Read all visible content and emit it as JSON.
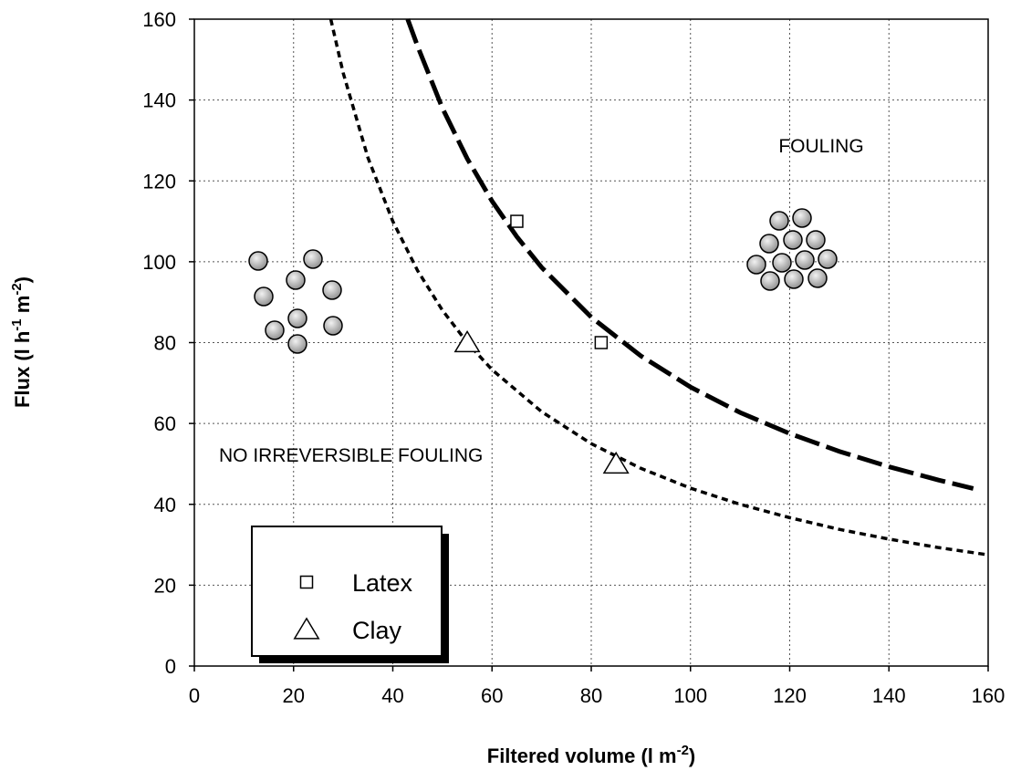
{
  "chart_data": {
    "type": "scatter",
    "x_label": [
      "Filtered volume (l m",
      "-2",
      ")"
    ],
    "y_label": [
      "Flux (l h",
      "-1",
      " m",
      "-2",
      ")"
    ],
    "xlim": [
      0,
      160
    ],
    "ylim": [
      0,
      160
    ],
    "xticks": [
      0,
      20,
      40,
      60,
      80,
      100,
      120,
      140,
      160
    ],
    "yticks": [
      0,
      20,
      40,
      60,
      80,
      100,
      120,
      140,
      160
    ],
    "grid": true,
    "series": [
      {
        "name": "Latex",
        "marker": "square",
        "color": "#000000",
        "x": [
          65,
          82
        ],
        "values": [
          110,
          80
        ]
      },
      {
        "name": "Clay",
        "marker": "triangle",
        "color": "#000000",
        "x": [
          55,
          85
        ],
        "values": [
          80,
          50
        ]
      }
    ],
    "fits": [
      {
        "style": "short-dash",
        "color": "#000000",
        "x": [
          27.5,
          30,
          35,
          40,
          45,
          50,
          55,
          60,
          70,
          80,
          90,
          100,
          110,
          120,
          130,
          140,
          150,
          160
        ],
        "values": [
          160,
          146.7,
          125.7,
          110,
          97.8,
          88,
          80,
          73.3,
          62.9,
          55,
          48.9,
          44,
          40,
          36.7,
          33.8,
          31.4,
          29.3,
          27.5
        ]
      },
      {
        "style": "long-dash",
        "color": "#000000",
        "x": [
          43,
          45,
          50,
          55,
          60,
          65,
          70,
          80,
          90,
          100,
          110,
          120,
          130,
          140,
          150,
          157
        ],
        "values": [
          160,
          153.3,
          138,
          125.5,
          115,
          106.2,
          98.6,
          86.3,
          76.7,
          69,
          62.7,
          57.5,
          53.1,
          49.3,
          46,
          43.9
        ]
      }
    ],
    "annotations": [
      "FOULING",
      "NO IRREVERSIBLE FOULING"
    ],
    "legend": "lower-left"
  }
}
